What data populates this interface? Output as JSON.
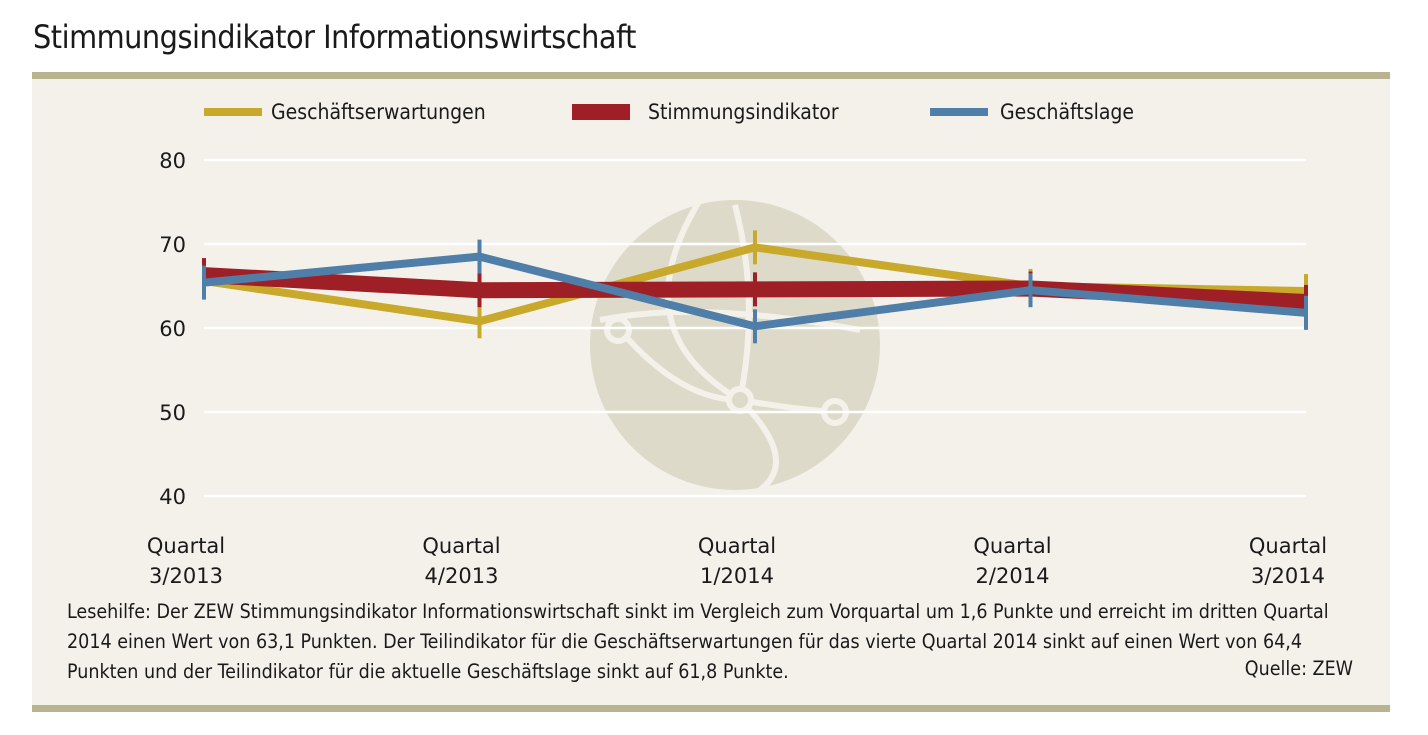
{
  "title": "Stimmungsindikator Informationswirtschaft",
  "legend": [
    "Geschäftserwartungen",
    "Stimmungsindikator",
    "Geschäftslage"
  ],
  "note": "Lesehilfe: Der ZEW Stimmungsindikator Informationswirtschaft sinkt im Vergleich zum Vorquartal um 1,6 Punkte und erreicht im dritten Quartal 2014 einen Wert von 63,1 Punkten. Der Teilindikator für die Geschäftserwartungen für das vierte Quartal 2014 sinkt auf einen Wert von 64,4 Punkten und der Teilindikator für die aktuelle Geschäftslage sinkt auf 61,8 Punkte.",
  "source": "Quelle: ZEW",
  "chart_data": {
    "type": "line",
    "categories": [
      [
        "Quartal",
        "3/2013"
      ],
      [
        "Quartal",
        "4/2013"
      ],
      [
        "Quartal",
        "1/2014"
      ],
      [
        "Quartal",
        "2/2014"
      ],
      [
        "Quartal",
        "3/2014"
      ]
    ],
    "ylim": [
      40,
      80
    ],
    "yticks": [
      40,
      50,
      60,
      70,
      80
    ],
    "grid": true,
    "legend_position": "top",
    "series": [
      {
        "name": "Geschäftserwartungen",
        "color": "#c8a92c",
        "values": [
          65.6,
          60.8,
          69.6,
          65.0,
          64.4
        ]
      },
      {
        "name": "Stimmungsindikator",
        "color": "#9e2026",
        "values": [
          66.3,
          64.5,
          64.6,
          64.7,
          63.1
        ]
      },
      {
        "name": "Geschäftslage",
        "color": "#4f7ea8",
        "values": [
          65.4,
          68.5,
          60.2,
          64.5,
          61.8
        ]
      }
    ]
  }
}
